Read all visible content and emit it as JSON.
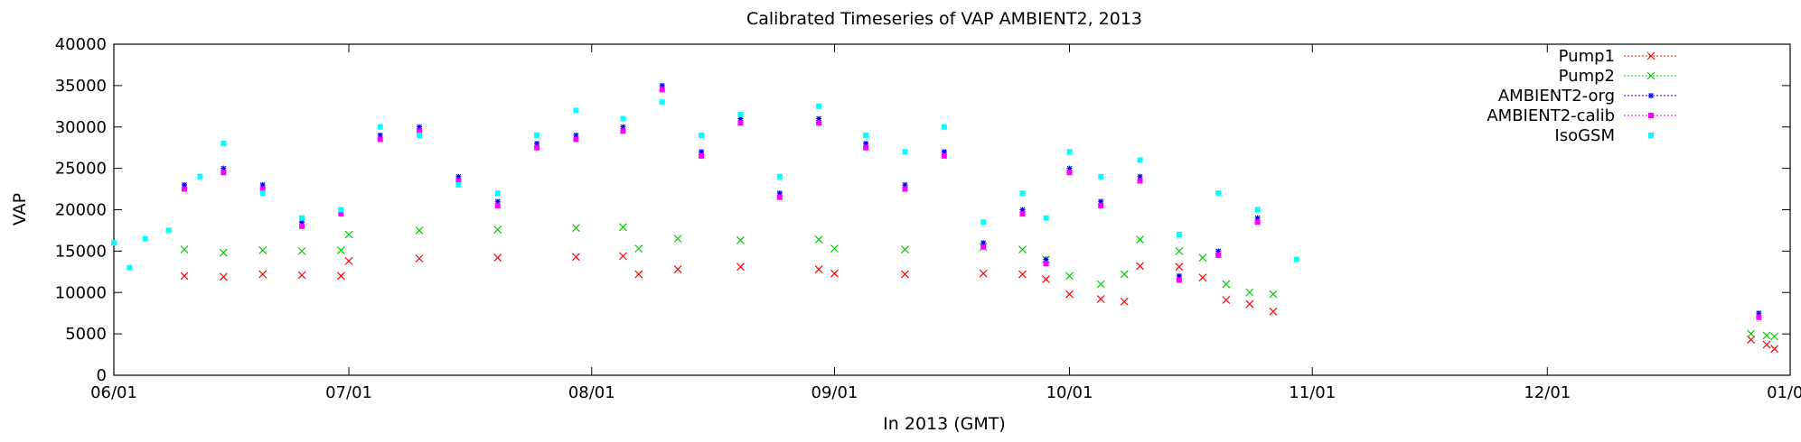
{
  "chart_data": {
    "type": "scatter",
    "title": "Calibrated Timeseries of VAP AMBIENT2, 2013",
    "xlabel": "In 2013 (GMT)",
    "ylabel": "VAP",
    "ylim": [
      0,
      40000
    ],
    "xlim": [
      "2013-06-01",
      "2014-01-01"
    ],
    "x_ticks": [
      "06/01",
      "07/01",
      "08/01",
      "09/01",
      "10/01",
      "11/01",
      "12/01",
      "01/01"
    ],
    "y_ticks": [
      0,
      5000,
      10000,
      15000,
      20000,
      25000,
      30000,
      35000,
      40000
    ],
    "legend_position": "top-right",
    "grid": false,
    "series": [
      {
        "name": "Pump1",
        "color": "#ff0000",
        "marker": "x",
        "points": [
          [
            "2013-06-10",
            12000
          ],
          [
            "2013-06-15",
            11900
          ],
          [
            "2013-06-20",
            12200
          ],
          [
            "2013-06-25",
            12100
          ],
          [
            "2013-06-30",
            12000
          ],
          [
            "2013-07-01",
            13800
          ],
          [
            "2013-07-10",
            14100
          ],
          [
            "2013-07-20",
            14200
          ],
          [
            "2013-07-30",
            14300
          ],
          [
            "2013-08-05",
            14400
          ],
          [
            "2013-08-07",
            12200
          ],
          [
            "2013-08-12",
            12800
          ],
          [
            "2013-08-20",
            13100
          ],
          [
            "2013-08-30",
            12800
          ],
          [
            "2013-09-01",
            12300
          ],
          [
            "2013-09-10",
            12200
          ],
          [
            "2013-09-20",
            12300
          ],
          [
            "2013-09-25",
            12200
          ],
          [
            "2013-09-28",
            11600
          ],
          [
            "2013-10-01",
            9800
          ],
          [
            "2013-10-05",
            9200
          ],
          [
            "2013-10-08",
            8900
          ],
          [
            "2013-10-10",
            13200
          ],
          [
            "2013-10-15",
            13100
          ],
          [
            "2013-10-18",
            11800
          ],
          [
            "2013-10-21",
            9100
          ],
          [
            "2013-10-24",
            8600
          ],
          [
            "2013-10-27",
            7700
          ],
          [
            "2013-12-27",
            4300
          ],
          [
            "2013-12-29",
            3700
          ],
          [
            "2013-12-30",
            3200
          ]
        ]
      },
      {
        "name": "Pump2",
        "color": "#00cc00",
        "marker": "x",
        "points": [
          [
            "2013-06-10",
            15200
          ],
          [
            "2013-06-15",
            14800
          ],
          [
            "2013-06-20",
            15100
          ],
          [
            "2013-06-25",
            15000
          ],
          [
            "2013-06-30",
            15100
          ],
          [
            "2013-07-01",
            17000
          ],
          [
            "2013-07-10",
            17500
          ],
          [
            "2013-07-20",
            17600
          ],
          [
            "2013-07-30",
            17800
          ],
          [
            "2013-08-05",
            17900
          ],
          [
            "2013-08-07",
            15300
          ],
          [
            "2013-08-12",
            16500
          ],
          [
            "2013-08-20",
            16300
          ],
          [
            "2013-08-30",
            16400
          ],
          [
            "2013-09-01",
            15300
          ],
          [
            "2013-09-10",
            15200
          ],
          [
            "2013-09-20",
            15500
          ],
          [
            "2013-09-25",
            15200
          ],
          [
            "2013-09-28",
            14000
          ],
          [
            "2013-10-01",
            12000
          ],
          [
            "2013-10-05",
            11000
          ],
          [
            "2013-10-08",
            12200
          ],
          [
            "2013-10-10",
            16400
          ],
          [
            "2013-10-15",
            15000
          ],
          [
            "2013-10-18",
            14200
          ],
          [
            "2013-10-21",
            11000
          ],
          [
            "2013-10-24",
            10000
          ],
          [
            "2013-10-27",
            9800
          ],
          [
            "2013-12-27",
            5000
          ],
          [
            "2013-12-29",
            4800
          ],
          [
            "2013-12-30",
            4700
          ]
        ]
      },
      {
        "name": "AMBIENT2-org",
        "color": "#0000ff",
        "marker": "star",
        "points": [
          [
            "2013-06-10",
            23000
          ],
          [
            "2013-06-15",
            25000
          ],
          [
            "2013-06-20",
            23000
          ],
          [
            "2013-06-25",
            18500
          ],
          [
            "2013-06-30",
            20000
          ],
          [
            "2013-07-05",
            29000
          ],
          [
            "2013-07-10",
            30000
          ],
          [
            "2013-07-15",
            24000
          ],
          [
            "2013-07-20",
            21000
          ],
          [
            "2013-07-25",
            28000
          ],
          [
            "2013-07-30",
            29000
          ],
          [
            "2013-08-05",
            30000
          ],
          [
            "2013-08-10",
            35000
          ],
          [
            "2013-08-15",
            27000
          ],
          [
            "2013-08-20",
            31000
          ],
          [
            "2013-08-25",
            22000
          ],
          [
            "2013-08-30",
            31000
          ],
          [
            "2013-09-05",
            28000
          ],
          [
            "2013-09-10",
            23000
          ],
          [
            "2013-09-15",
            27000
          ],
          [
            "2013-09-20",
            16000
          ],
          [
            "2013-09-25",
            20000
          ],
          [
            "2013-09-28",
            14000
          ],
          [
            "2013-10-01",
            25000
          ],
          [
            "2013-10-05",
            21000
          ],
          [
            "2013-10-10",
            24000
          ],
          [
            "2013-10-15",
            12000
          ],
          [
            "2013-10-20",
            15000
          ],
          [
            "2013-10-25",
            19000
          ],
          [
            "2013-12-28",
            7500
          ]
        ]
      },
      {
        "name": "AMBIENT2-calib",
        "color": "#ff00ff",
        "marker": "square",
        "points": [
          [
            "2013-06-10",
            22500
          ],
          [
            "2013-06-15",
            24500
          ],
          [
            "2013-06-20",
            22500
          ],
          [
            "2013-06-25",
            18000
          ],
          [
            "2013-06-30",
            19500
          ],
          [
            "2013-07-05",
            28500
          ],
          [
            "2013-07-10",
            29500
          ],
          [
            "2013-07-15",
            23500
          ],
          [
            "2013-07-20",
            20500
          ],
          [
            "2013-07-25",
            27500
          ],
          [
            "2013-07-30",
            28500
          ],
          [
            "2013-08-05",
            29500
          ],
          [
            "2013-08-10",
            34500
          ],
          [
            "2013-08-15",
            26500
          ],
          [
            "2013-08-20",
            30500
          ],
          [
            "2013-08-25",
            21500
          ],
          [
            "2013-08-30",
            30500
          ],
          [
            "2013-09-05",
            27500
          ],
          [
            "2013-09-10",
            22500
          ],
          [
            "2013-09-15",
            26500
          ],
          [
            "2013-09-20",
            15500
          ],
          [
            "2013-09-25",
            19500
          ],
          [
            "2013-09-28",
            13500
          ],
          [
            "2013-10-01",
            24500
          ],
          [
            "2013-10-05",
            20500
          ],
          [
            "2013-10-10",
            23500
          ],
          [
            "2013-10-15",
            11500
          ],
          [
            "2013-10-20",
            14500
          ],
          [
            "2013-10-25",
            18500
          ],
          [
            "2013-12-28",
            7000
          ]
        ]
      },
      {
        "name": "IsoGSM",
        "color": "#00ffff",
        "marker": "square",
        "points": [
          [
            "2013-06-01",
            16000
          ],
          [
            "2013-06-03",
            13000
          ],
          [
            "2013-06-05",
            16500
          ],
          [
            "2013-06-08",
            17500
          ],
          [
            "2013-06-12",
            24000
          ],
          [
            "2013-06-15",
            28000
          ],
          [
            "2013-06-20",
            22000
          ],
          [
            "2013-06-25",
            19000
          ],
          [
            "2013-06-30",
            20000
          ],
          [
            "2013-07-05",
            30000
          ],
          [
            "2013-07-10",
            29000
          ],
          [
            "2013-07-15",
            23000
          ],
          [
            "2013-07-20",
            22000
          ],
          [
            "2013-07-25",
            29000
          ],
          [
            "2013-07-30",
            32000
          ],
          [
            "2013-08-05",
            31000
          ],
          [
            "2013-08-10",
            33000
          ],
          [
            "2013-08-15",
            29000
          ],
          [
            "2013-08-20",
            31500
          ],
          [
            "2013-08-25",
            24000
          ],
          [
            "2013-08-30",
            32500
          ],
          [
            "2013-09-05",
            29000
          ],
          [
            "2013-09-10",
            27000
          ],
          [
            "2013-09-15",
            30000
          ],
          [
            "2013-09-20",
            18500
          ],
          [
            "2013-09-25",
            22000
          ],
          [
            "2013-09-28",
            19000
          ],
          [
            "2013-10-01",
            27000
          ],
          [
            "2013-10-05",
            24000
          ],
          [
            "2013-10-10",
            26000
          ],
          [
            "2013-10-15",
            17000
          ],
          [
            "2013-10-20",
            22000
          ],
          [
            "2013-10-25",
            20000
          ],
          [
            "2013-10-30",
            14000
          ]
        ]
      }
    ]
  }
}
